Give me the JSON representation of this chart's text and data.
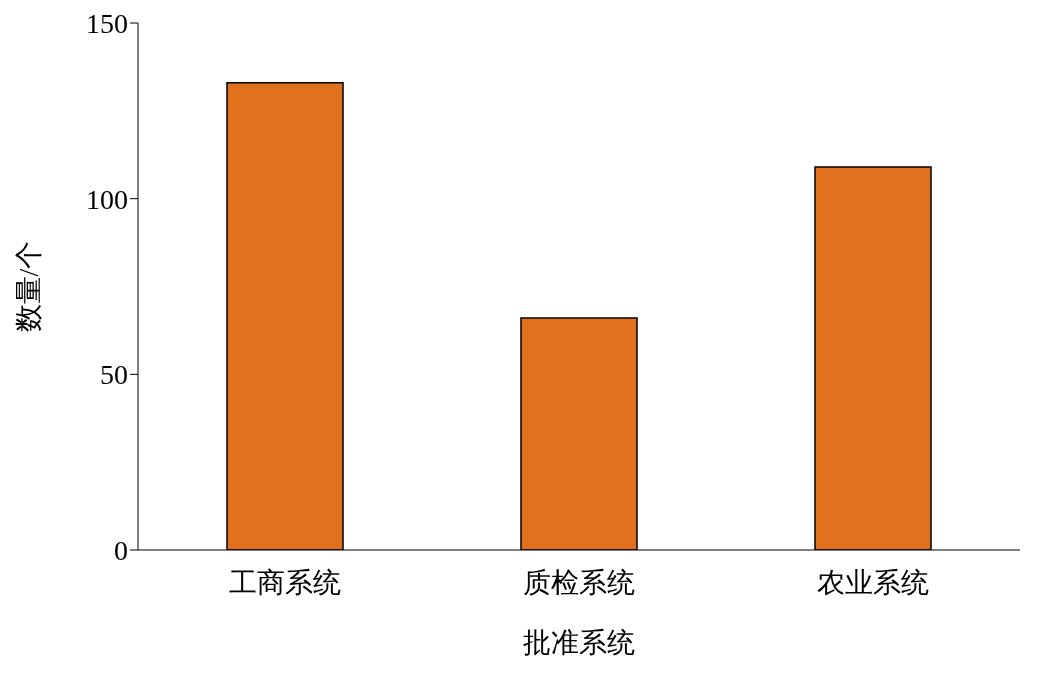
{
  "chart_data": {
    "type": "bar",
    "xlabel": "批准系统",
    "ylabel": "数量/个",
    "categories": [
      "工商系统",
      "质检系统",
      "农业系统"
    ],
    "values": [
      133,
      66,
      109
    ],
    "color": "#e2711d",
    "ylim": [
      0,
      150
    ],
    "yticks": [
      0,
      50,
      100,
      150
    ]
  }
}
